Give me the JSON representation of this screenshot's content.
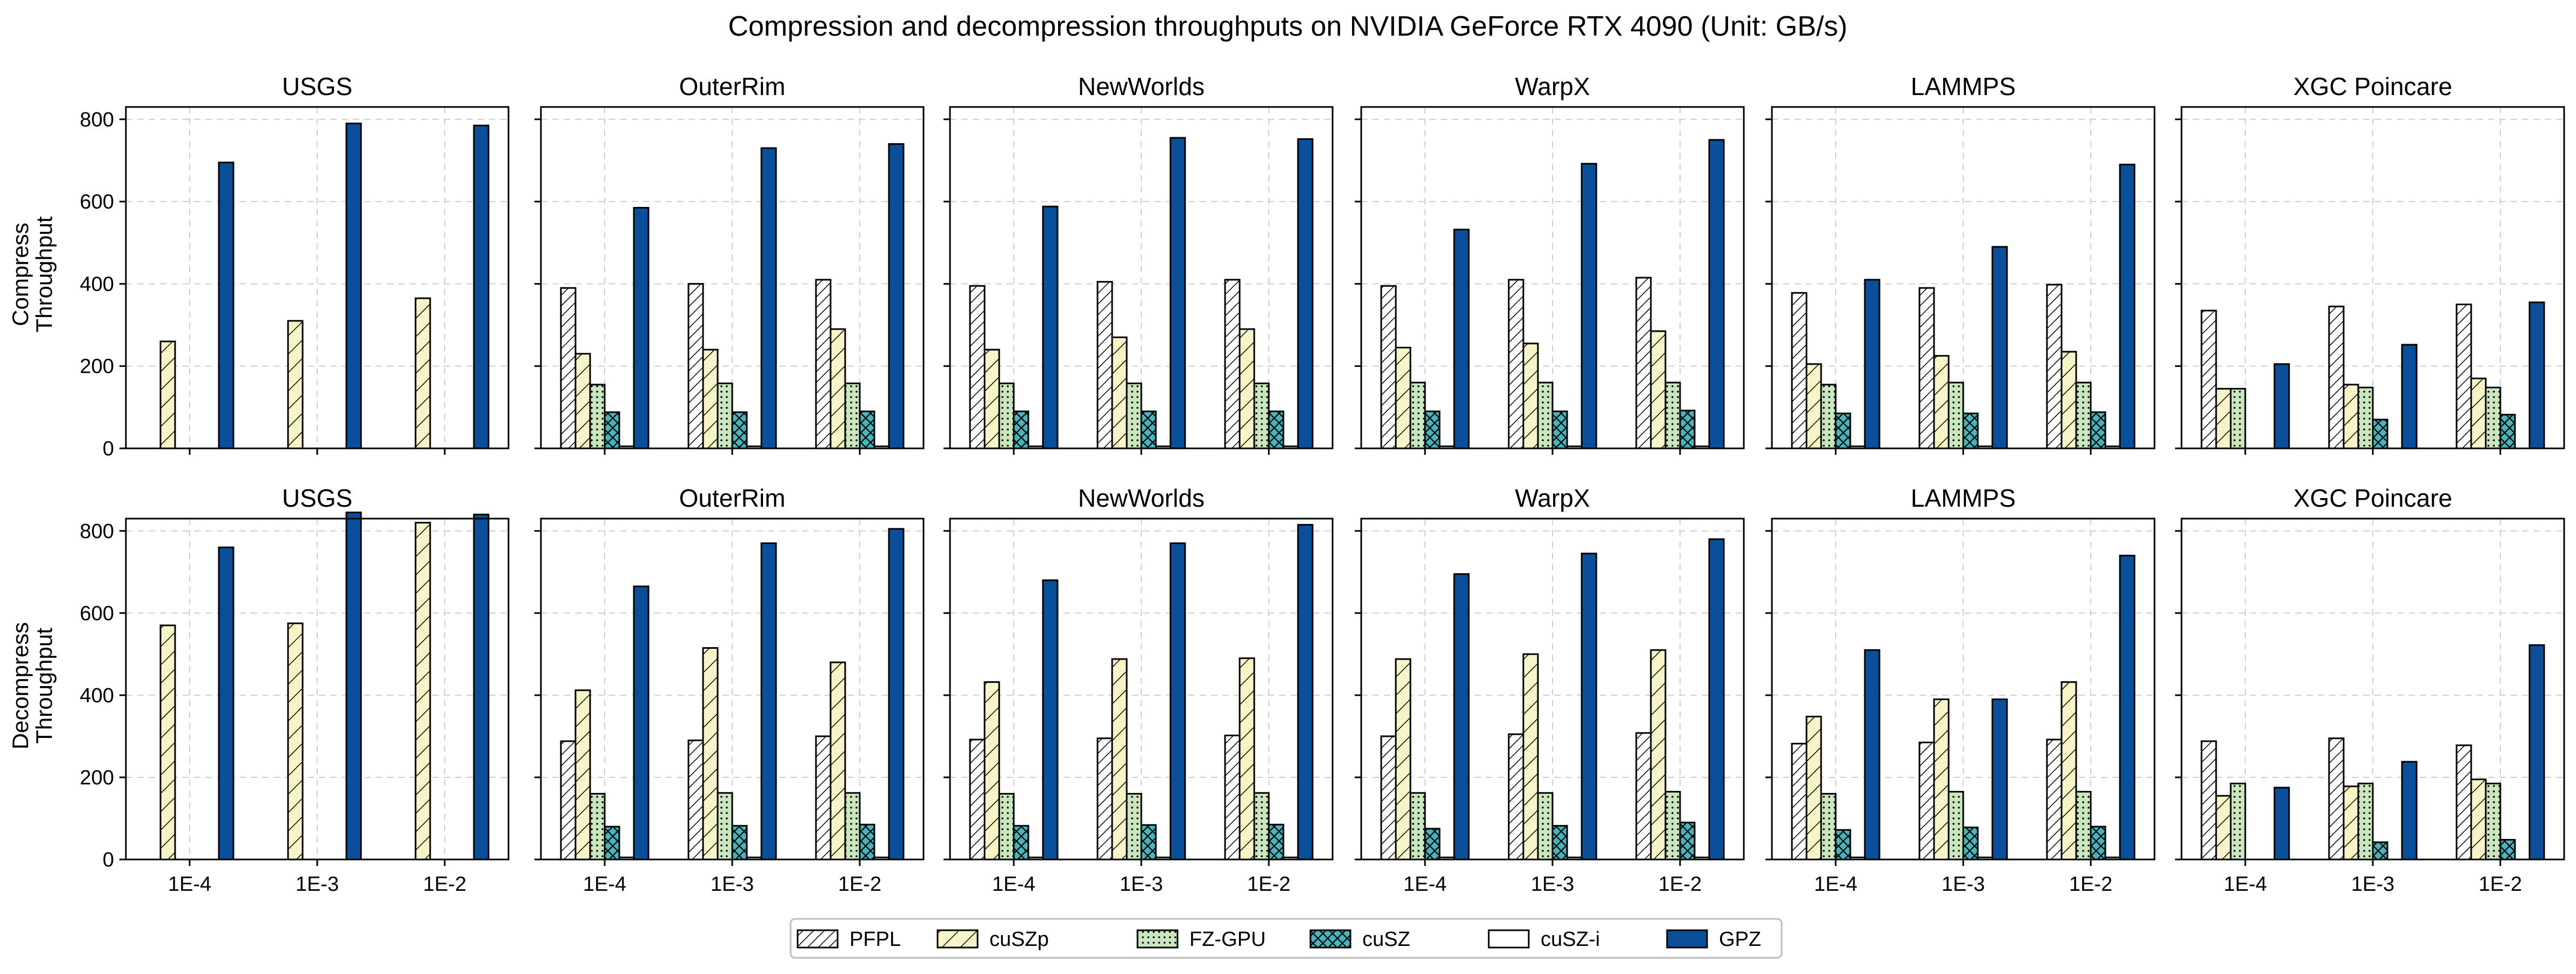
{
  "title": "Compression and decompression throughputs on NVIDIA GeForce RTX 4090 (Unit: GB/s)",
  "chart_data": {
    "type": "bar",
    "categories": [
      "1E-4",
      "1E-3",
      "1E-2"
    ],
    "ylim": [
      0,
      830
    ],
    "yticks": [
      0,
      200,
      400,
      600,
      800
    ],
    "ytick_labels": [
      "0",
      "200",
      "400",
      "600",
      "800"
    ],
    "grid": true,
    "legend_position": "bottom-center",
    "series_styles": [
      {
        "name": "PFPL",
        "fill": "#ffffff",
        "pattern": "dense-diagonal"
      },
      {
        "name": "cuSZp",
        "fill": "#f7f5c8",
        "pattern": "diagonal"
      },
      {
        "name": "FZ-GPU",
        "fill": "#c9e6bf",
        "pattern": "dots"
      },
      {
        "name": "cuSZ",
        "fill": "#49b2ba",
        "pattern": "crosshatch"
      },
      {
        "name": "cuSZ-i",
        "fill": "#ffffff",
        "pattern": "none"
      },
      {
        "name": "GPZ",
        "fill": "#0b4f9a",
        "pattern": "none"
      }
    ],
    "rows": [
      {
        "label_line1": "Compress",
        "label_line2": "Throughput",
        "panels": [
          {
            "title": "USGS",
            "series": [
              {
                "name": "PFPL",
                "values": [
                  0,
                  0,
                  0
                ]
              },
              {
                "name": "cuSZp",
                "values": [
                  260,
                  310,
                  365
                ]
              },
              {
                "name": "FZ-GPU",
                "values": [
                  0,
                  0,
                  0
                ]
              },
              {
                "name": "cuSZ",
                "values": [
                  0,
                  0,
                  0
                ]
              },
              {
                "name": "cuSZ-i",
                "values": [
                  0,
                  0,
                  0
                ]
              },
              {
                "name": "GPZ",
                "values": [
                  695,
                  790,
                  785
                ]
              }
            ]
          },
          {
            "title": "OuterRim",
            "series": [
              {
                "name": "PFPL",
                "values": [
                  390,
                  400,
                  410
                ]
              },
              {
                "name": "cuSZp",
                "values": [
                  230,
                  240,
                  290
                ]
              },
              {
                "name": "FZ-GPU",
                "values": [
                  155,
                  158,
                  158
                ]
              },
              {
                "name": "cuSZ",
                "values": [
                  88,
                  88,
                  90
                ]
              },
              {
                "name": "cuSZ-i",
                "values": [
                  5,
                  5,
                  5
                ]
              },
              {
                "name": "GPZ",
                "values": [
                  585,
                  730,
                  740
                ]
              }
            ]
          },
          {
            "title": "NewWorlds",
            "series": [
              {
                "name": "PFPL",
                "values": [
                  395,
                  405,
                  410
                ]
              },
              {
                "name": "cuSZp",
                "values": [
                  240,
                  270,
                  290
                ]
              },
              {
                "name": "FZ-GPU",
                "values": [
                  158,
                  158,
                  158
                ]
              },
              {
                "name": "cuSZ",
                "values": [
                  90,
                  90,
                  90
                ]
              },
              {
                "name": "cuSZ-i",
                "values": [
                  5,
                  5,
                  5
                ]
              },
              {
                "name": "GPZ",
                "values": [
                  588,
                  755,
                  752
                ]
              }
            ]
          },
          {
            "title": "WarpX",
            "series": [
              {
                "name": "PFPL",
                "values": [
                  395,
                  410,
                  415
                ]
              },
              {
                "name": "cuSZp",
                "values": [
                  245,
                  255,
                  285
                ]
              },
              {
                "name": "FZ-GPU",
                "values": [
                  160,
                  160,
                  160
                ]
              },
              {
                "name": "cuSZ",
                "values": [
                  90,
                  90,
                  92
                ]
              },
              {
                "name": "cuSZ-i",
                "values": [
                  5,
                  5,
                  5
                ]
              },
              {
                "name": "GPZ",
                "values": [
                  532,
                  692,
                  750
                ]
              }
            ]
          },
          {
            "title": "LAMMPS",
            "series": [
              {
                "name": "PFPL",
                "values": [
                  378,
                  390,
                  398
                ]
              },
              {
                "name": "cuSZp",
                "values": [
                  205,
                  225,
                  235
                ]
              },
              {
                "name": "FZ-GPU",
                "values": [
                  155,
                  160,
                  160
                ]
              },
              {
                "name": "cuSZ",
                "values": [
                  85,
                  85,
                  88
                ]
              },
              {
                "name": "cuSZ-i",
                "values": [
                  5,
                  5,
                  5
                ]
              },
              {
                "name": "GPZ",
                "values": [
                  410,
                  490,
                  690
                ]
              }
            ]
          },
          {
            "title": "XGC Poincare",
            "series": [
              {
                "name": "PFPL",
                "values": [
                  335,
                  345,
                  350
                ]
              },
              {
                "name": "cuSZp",
                "values": [
                  145,
                  155,
                  170
                ]
              },
              {
                "name": "FZ-GPU",
                "values": [
                  145,
                  148,
                  148
                ]
              },
              {
                "name": "cuSZ",
                "values": [
                  0,
                  70,
                  82
                ]
              },
              {
                "name": "cuSZ-i",
                "values": [
                  0,
                  0,
                  0
                ]
              },
              {
                "name": "GPZ",
                "values": [
                  205,
                  252,
                  355
                ]
              }
            ]
          }
        ]
      },
      {
        "label_line1": "Decompress",
        "label_line2": "Throughput",
        "panels": [
          {
            "title": "USGS",
            "series": [
              {
                "name": "PFPL",
                "values": [
                  0,
                  0,
                  0
                ]
              },
              {
                "name": "cuSZp",
                "values": [
                  570,
                  575,
                  820
                ]
              },
              {
                "name": "FZ-GPU",
                "values": [
                  0,
                  0,
                  0
                ]
              },
              {
                "name": "cuSZ",
                "values": [
                  0,
                  0,
                  0
                ]
              },
              {
                "name": "cuSZ-i",
                "values": [
                  0,
                  0,
                  0
                ]
              },
              {
                "name": "GPZ",
                "values": [
                  760,
                  845,
                  840
                ]
              }
            ]
          },
          {
            "title": "OuterRim",
            "series": [
              {
                "name": "PFPL",
                "values": [
                  288,
                  290,
                  300
                ]
              },
              {
                "name": "cuSZp",
                "values": [
                  412,
                  515,
                  480
                ]
              },
              {
                "name": "FZ-GPU",
                "values": [
                  160,
                  162,
                  162
                ]
              },
              {
                "name": "cuSZ",
                "values": [
                  80,
                  82,
                  85
                ]
              },
              {
                "name": "cuSZ-i",
                "values": [
                  5,
                  5,
                  5
                ]
              },
              {
                "name": "GPZ",
                "values": [
                  665,
                  770,
                  805
                ]
              }
            ]
          },
          {
            "title": "NewWorlds",
            "series": [
              {
                "name": "PFPL",
                "values": [
                  292,
                  295,
                  302
                ]
              },
              {
                "name": "cuSZp",
                "values": [
                  432,
                  488,
                  490
                ]
              },
              {
                "name": "FZ-GPU",
                "values": [
                  160,
                  160,
                  162
                ]
              },
              {
                "name": "cuSZ",
                "values": [
                  82,
                  84,
                  85
                ]
              },
              {
                "name": "cuSZ-i",
                "values": [
                  5,
                  5,
                  5
                ]
              },
              {
                "name": "GPZ",
                "values": [
                  680,
                  770,
                  815
                ]
              }
            ]
          },
          {
            "title": "WarpX",
            "series": [
              {
                "name": "PFPL",
                "values": [
                  300,
                  305,
                  308
                ]
              },
              {
                "name": "cuSZp",
                "values": [
                  488,
                  500,
                  510
                ]
              },
              {
                "name": "FZ-GPU",
                "values": [
                  162,
                  162,
                  165
                ]
              },
              {
                "name": "cuSZ",
                "values": [
                  75,
                  82,
                  90
                ]
              },
              {
                "name": "cuSZ-i",
                "values": [
                  5,
                  5,
                  5
                ]
              },
              {
                "name": "GPZ",
                "values": [
                  695,
                  745,
                  780
                ]
              }
            ]
          },
          {
            "title": "LAMMPS",
            "series": [
              {
                "name": "PFPL",
                "values": [
                  282,
                  285,
                  292
                ]
              },
              {
                "name": "cuSZp",
                "values": [
                  348,
                  390,
                  432
                ]
              },
              {
                "name": "FZ-GPU",
                "values": [
                  160,
                  165,
                  165
                ]
              },
              {
                "name": "cuSZ",
                "values": [
                  72,
                  78,
                  80
                ]
              },
              {
                "name": "cuSZ-i",
                "values": [
                  5,
                  5,
                  5
                ]
              },
              {
                "name": "GPZ",
                "values": [
                  510,
                  390,
                  740
                ]
              }
            ]
          },
          {
            "title": "XGC Poincare",
            "series": [
              {
                "name": "PFPL",
                "values": [
                  288,
                  295,
                  278
                ]
              },
              {
                "name": "cuSZp",
                "values": [
                  155,
                  178,
                  195
                ]
              },
              {
                "name": "FZ-GPU",
                "values": [
                  185,
                  185,
                  185
                ]
              },
              {
                "name": "cuSZ",
                "values": [
                  0,
                  42,
                  48
                ]
              },
              {
                "name": "cuSZ-i",
                "values": [
                  0,
                  0,
                  0
                ]
              },
              {
                "name": "GPZ",
                "values": [
                  175,
                  238,
                  522
                ]
              }
            ]
          }
        ]
      }
    ]
  }
}
